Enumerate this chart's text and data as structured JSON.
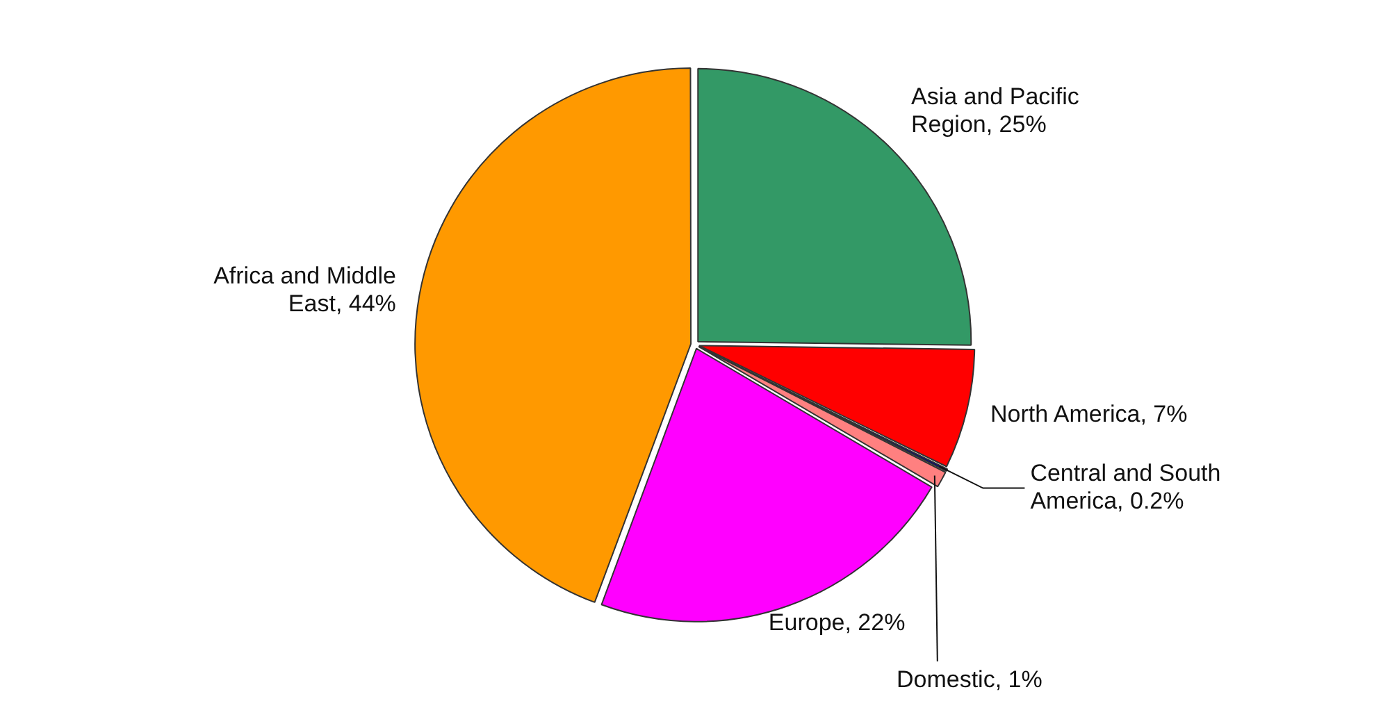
{
  "chart_data": {
    "type": "pie",
    "categories": [
      "Asia and Pacific Region",
      "North America",
      "Central and South America",
      "Domestic",
      "Europe",
      "Africa and Middle East"
    ],
    "values": [
      25,
      7,
      0.2,
      1,
      22,
      44
    ],
    "colors": [
      "#339966",
      "#ff0000",
      "#000080",
      "#ff8080",
      "#ff00ff",
      "#ff9900"
    ],
    "value_labels": [
      "25%",
      "7%",
      "0.2%",
      "1%",
      "22%",
      "44%"
    ],
    "legend": false
  }
}
